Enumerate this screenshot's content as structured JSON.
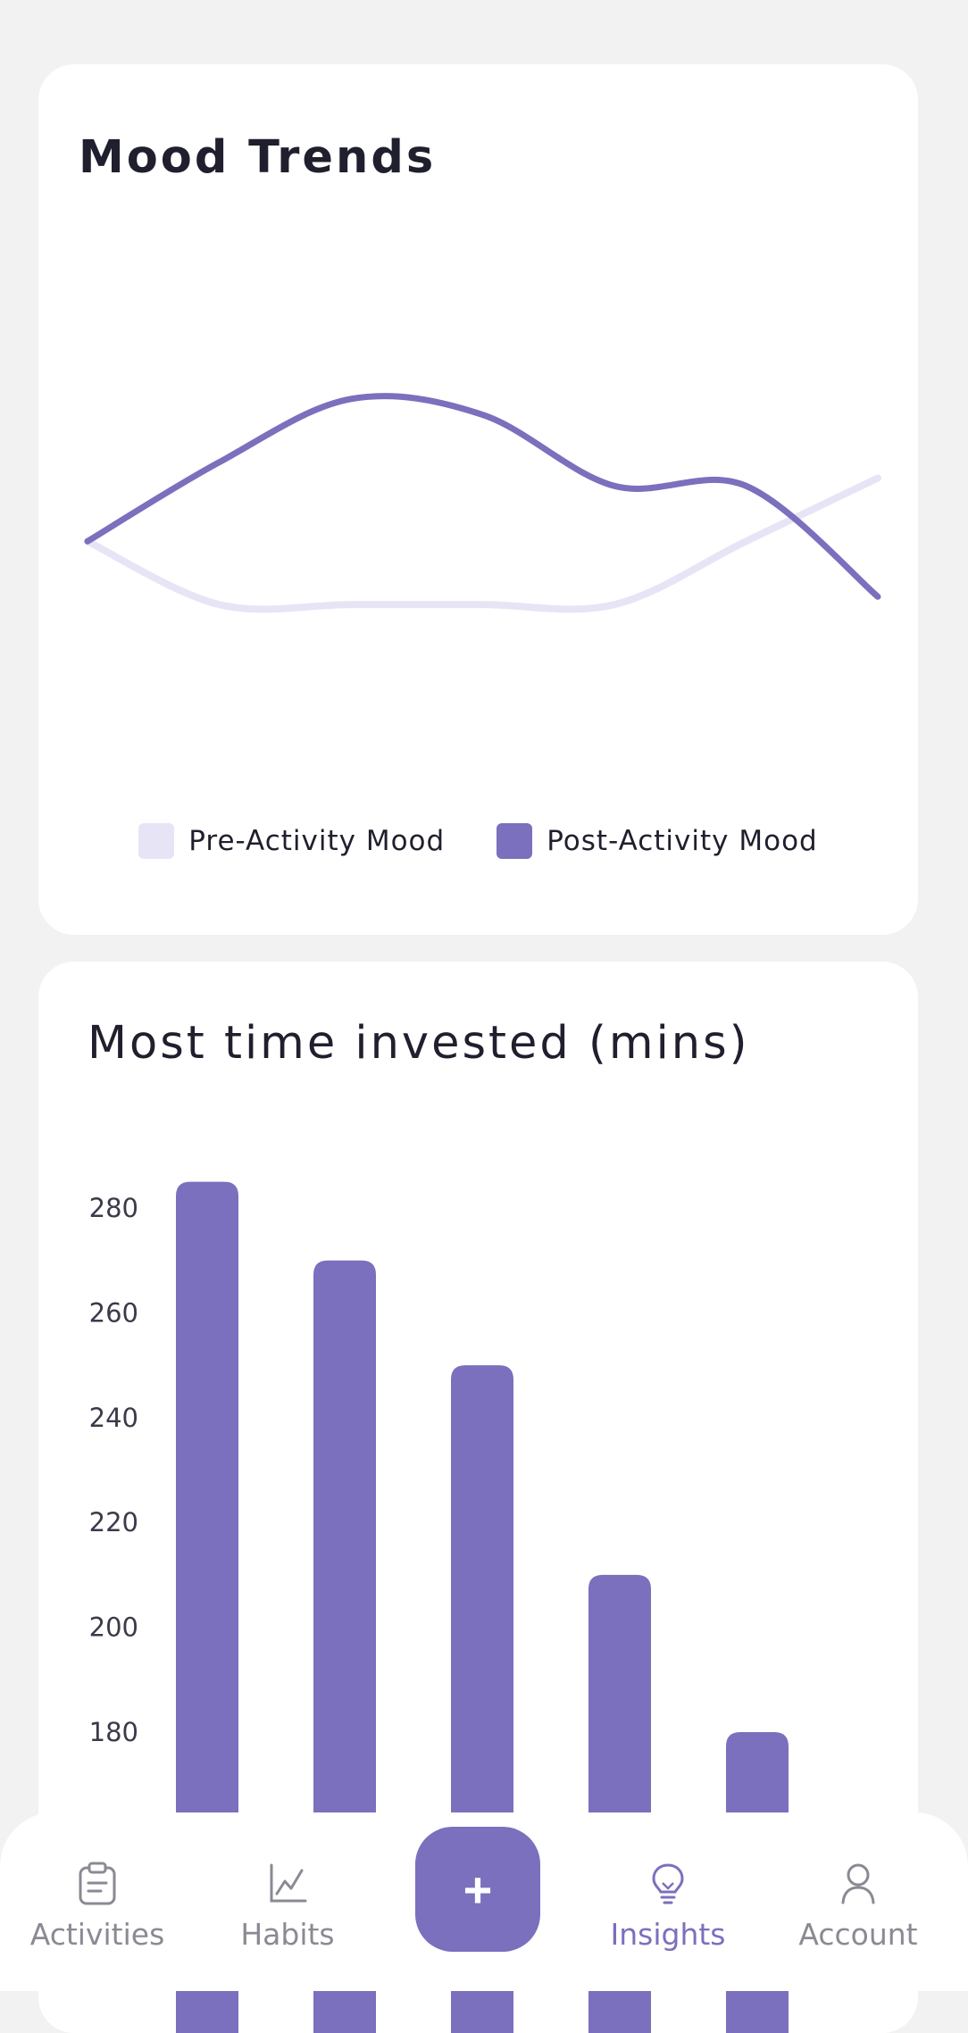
{
  "mood_card": {
    "title": "Mood Trends",
    "legend": [
      {
        "label": "Pre-Activity Mood",
        "color": "#e7e4f6"
      },
      {
        "label": "Post-Activity Mood",
        "color": "#7a70bd"
      }
    ]
  },
  "time_card": {
    "title": "Most time invested (mins)"
  },
  "chart_data": [
    {
      "type": "line",
      "title": "Mood Trends",
      "x": [
        1,
        2,
        3,
        4,
        5,
        6,
        7
      ],
      "series": [
        {
          "name": "Pre-Activity Mood",
          "color": "#e7e4f6",
          "values": [
            3.0,
            2.2,
            2.2,
            2.2,
            2.2,
            3.0,
            3.8
          ]
        },
        {
          "name": "Post-Activity Mood",
          "color": "#7a70bd",
          "values": [
            3.0,
            4.0,
            4.8,
            4.6,
            3.7,
            3.7,
            2.3
          ]
        }
      ],
      "ylim": [
        0,
        7
      ],
      "grid": false,
      "legend_position": "bottom"
    },
    {
      "type": "bar",
      "title": "Most time invested (mins)",
      "values": [
        285,
        270,
        250,
        210,
        180
      ],
      "yticks": [
        "180",
        "200",
        "220",
        "240",
        "260",
        "280"
      ],
      "ytick_values": [
        180,
        200,
        220,
        240,
        260,
        280
      ],
      "ylim": [
        160,
        290
      ],
      "color": "#7a70bd",
      "grid": false
    }
  ],
  "nav": {
    "items": [
      {
        "label": "Activities",
        "icon": "clipboard-icon"
      },
      {
        "label": "Habits",
        "icon": "chart-line-icon"
      },
      {
        "label": "Insights",
        "icon": "lightbulb-icon",
        "active": true
      },
      {
        "label": "Account",
        "icon": "user-icon"
      }
    ],
    "add_label": "+"
  }
}
